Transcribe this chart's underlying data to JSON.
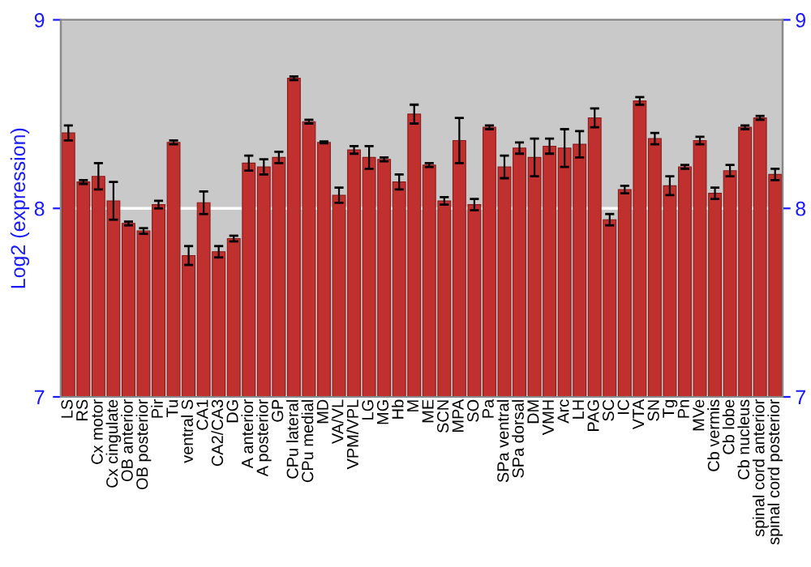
{
  "chart_data": {
    "type": "bar",
    "ylabel": "Log2 (expression)",
    "categories": [
      "LS",
      "RS",
      "Cx motor",
      "Cx cingulate",
      "OB anterior",
      "OB posterior",
      "Pir",
      "Tu",
      "ventral S",
      "CA1",
      "CA2/CA3",
      "DG",
      "A anterior",
      "A posterior",
      "GP",
      "CPu lateral",
      "CPu medial",
      "MD",
      "VA/VL",
      "VPM/VPL",
      "LG",
      "MG",
      "Hb",
      "M",
      "ME",
      "SCN",
      "MPA",
      "SO",
      "Pa",
      "SPa ventral",
      "SPa dorsal",
      "DM",
      "VMH",
      "Arc",
      "LH",
      "PAG",
      "SC",
      "IC",
      "VTA",
      "SN",
      "Tg",
      "Pn",
      "MVe",
      "Cb vermis",
      "Cb lobe",
      "Cb nucleus",
      "spinal cord anterior",
      "spinal cord posterior"
    ],
    "values": [
      8.4,
      8.14,
      8.17,
      8.04,
      7.92,
      7.88,
      8.02,
      8.35,
      7.75,
      8.03,
      7.77,
      7.84,
      8.24,
      8.22,
      8.27,
      8.69,
      8.46,
      8.35,
      8.07,
      8.31,
      8.27,
      8.26,
      8.14,
      8.5,
      8.23,
      8.04,
      8.36,
      8.02,
      8.43,
      8.22,
      8.32,
      8.27,
      8.33,
      8.32,
      8.34,
      8.48,
      7.94,
      8.1,
      8.57,
      8.37,
      8.12,
      8.22,
      8.36,
      8.08,
      8.2,
      8.43,
      8.48,
      8.18
    ],
    "errors": [
      0.04,
      0.01,
      0.07,
      0.1,
      0.01,
      0.015,
      0.02,
      0.01,
      0.05,
      0.06,
      0.03,
      0.015,
      0.04,
      0.04,
      0.03,
      0.01,
      0.01,
      0.005,
      0.04,
      0.02,
      0.06,
      0.01,
      0.04,
      0.05,
      0.01,
      0.02,
      0.12,
      0.03,
      0.01,
      0.06,
      0.03,
      0.1,
      0.04,
      0.1,
      0.07,
      0.05,
      0.03,
      0.02,
      0.02,
      0.03,
      0.05,
      0.01,
      0.02,
      0.03,
      0.03,
      0.01,
      0.01,
      0.03
    ],
    "color": "#c0302f",
    "ylim": [
      7,
      9
    ],
    "yticks": [
      7,
      8,
      9
    ],
    "y2lim": [
      7,
      9
    ],
    "y2ticks": [
      7,
      8,
      9
    ],
    "grid": "y"
  }
}
